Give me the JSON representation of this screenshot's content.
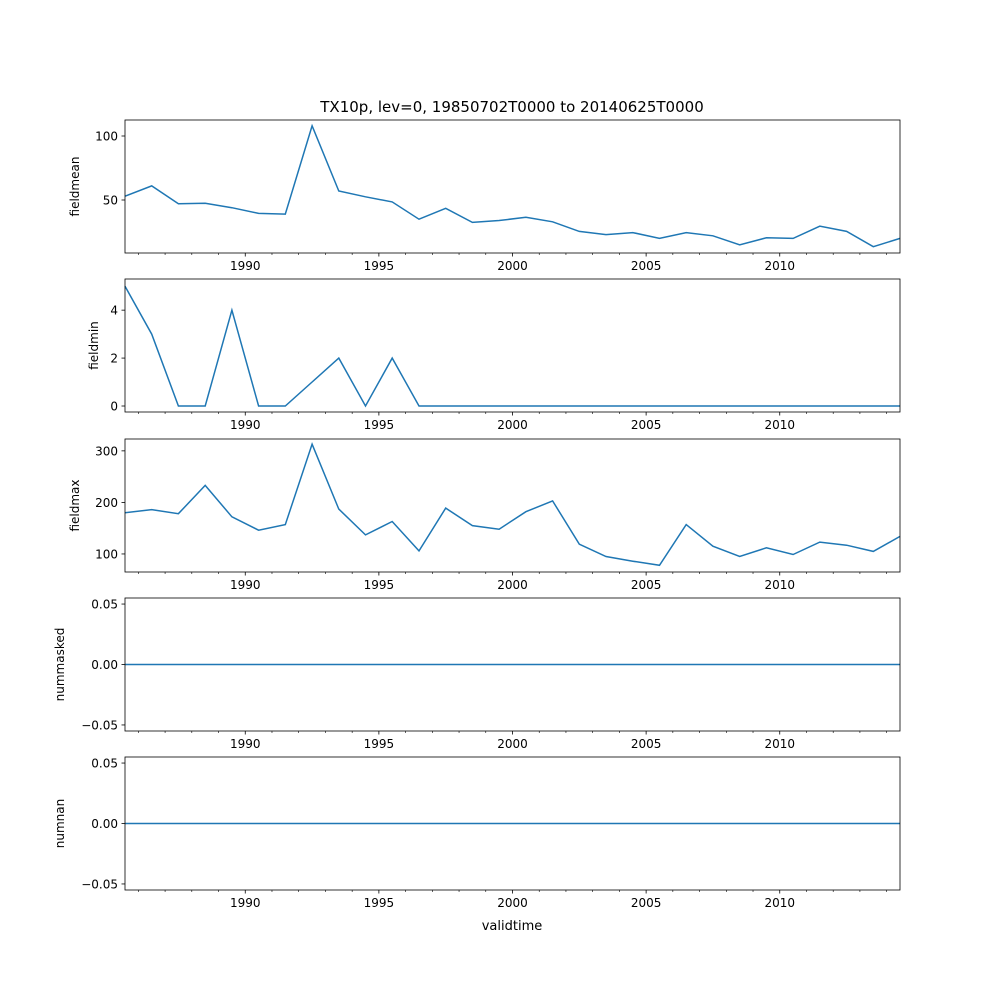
{
  "chart_data": {
    "type": "line",
    "title": "TX10p, lev=0, 19850702T0000 to 20140625T0000",
    "xlabel": "validtime",
    "x": [
      1985.5,
      1986.5,
      1987.5,
      1988.5,
      1989.5,
      1990.5,
      1991.5,
      1992.5,
      1993.5,
      1994.5,
      1995.5,
      1996.5,
      1997.5,
      1998.5,
      1999.5,
      2000.5,
      2001.5,
      2002.5,
      2003.5,
      2004.5,
      2005.5,
      2006.5,
      2007.5,
      2008.5,
      2009.5,
      2010.5,
      2011.5,
      2012.5,
      2013.5,
      2014.5
    ],
    "xlim": [
      1985.5,
      2014.5
    ],
    "xticks": [
      1990,
      1995,
      2000,
      2005,
      2010
    ],
    "xtick_labels": [
      "1990",
      "1995",
      "2000",
      "2005",
      "2010"
    ],
    "line_color": "#1f77b4",
    "grid": false,
    "panels": [
      {
        "ylabel": "fieldmean",
        "ylim": [
          8.6,
          112.5
        ],
        "yticks": [
          50,
          100
        ],
        "ytick_labels": [
          "50",
          "100"
        ],
        "values": [
          53,
          61,
          47,
          47.5,
          44,
          39.5,
          39,
          108,
          57,
          52.5,
          48.5,
          35,
          43.5,
          32.5,
          34,
          36.5,
          33,
          25.5,
          23,
          24.5,
          20,
          24.5,
          22,
          15,
          20.5,
          20,
          29.5,
          25.5,
          13.5,
          20
        ]
      },
      {
        "ylabel": "fieldmin",
        "ylim": [
          -0.25,
          5.3
        ],
        "yticks": [
          0,
          2,
          4
        ],
        "ytick_labels": [
          "0",
          "2",
          "4"
        ],
        "values": [
          5,
          3,
          0,
          0,
          4,
          0,
          0,
          1,
          2,
          0,
          2,
          0,
          0,
          0,
          0,
          0,
          0,
          0,
          0,
          0,
          0,
          0,
          0,
          0,
          0,
          0,
          0,
          0,
          0,
          0
        ]
      },
      {
        "ylabel": "fieldmax",
        "ylim": [
          65,
          323
        ],
        "yticks": [
          100,
          200,
          300
        ],
        "ytick_labels": [
          "100",
          "200",
          "300"
        ],
        "values": [
          180,
          186,
          178,
          233,
          172,
          146,
          157,
          313,
          187,
          137,
          163,
          106,
          189,
          155,
          148,
          182,
          203,
          119,
          95,
          86,
          78,
          157,
          115,
          95,
          112,
          99,
          123,
          117,
          105,
          134
        ]
      },
      {
        "ylabel": "nummasked",
        "ylim": [
          -0.055,
          0.055
        ],
        "yticks": [
          -0.05,
          0,
          0.05
        ],
        "ytick_labels": [
          "−0.05",
          "0.00",
          "0.05"
        ],
        "values": [
          0,
          0,
          0,
          0,
          0,
          0,
          0,
          0,
          0,
          0,
          0,
          0,
          0,
          0,
          0,
          0,
          0,
          0,
          0,
          0,
          0,
          0,
          0,
          0,
          0,
          0,
          0,
          0,
          0,
          0
        ]
      },
      {
        "ylabel": "numnan",
        "ylim": [
          -0.055,
          0.055
        ],
        "yticks": [
          -0.05,
          0,
          0.05
        ],
        "ytick_labels": [
          "−0.05",
          "0.00",
          "0.05"
        ],
        "values": [
          0,
          0,
          0,
          0,
          0,
          0,
          0,
          0,
          0,
          0,
          0,
          0,
          0,
          0,
          0,
          0,
          0,
          0,
          0,
          0,
          0,
          0,
          0,
          0,
          0,
          0,
          0,
          0,
          0,
          0
        ]
      }
    ]
  }
}
